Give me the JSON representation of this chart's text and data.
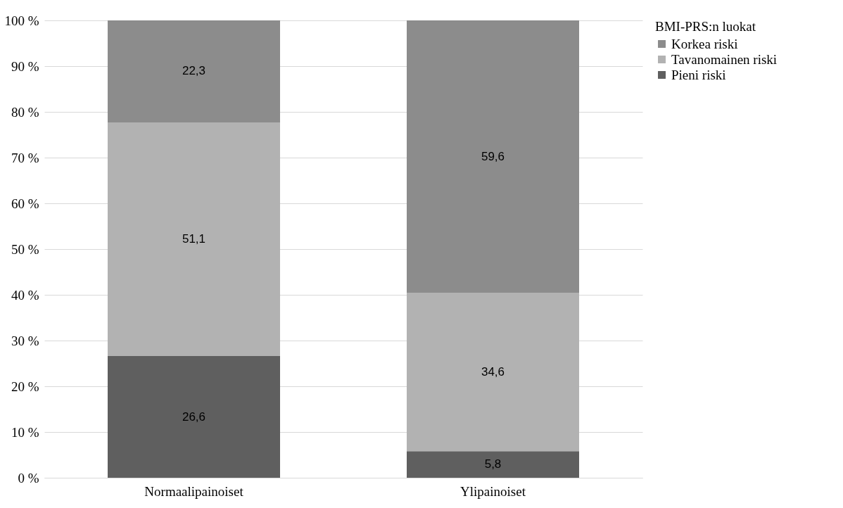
{
  "chart_data": {
    "type": "bar",
    "stacked": true,
    "categories": [
      "Normaalipainoiset",
      "Ylipainoiset"
    ],
    "series": [
      {
        "name": "Pieni riski",
        "color": "#5f5f5f",
        "values": [
          26.6,
          5.8
        ],
        "value_labels": [
          "26,6",
          "5,8"
        ]
      },
      {
        "name": "Tavanomainen riski",
        "color": "#b2b2b2",
        "values": [
          51.1,
          34.6
        ],
        "value_labels": [
          "51,1",
          "34,6"
        ]
      },
      {
        "name": "Korkea riski",
        "color": "#8c8c8c",
        "values": [
          22.3,
          59.6
        ],
        "value_labels": [
          "22,3",
          "59,6"
        ]
      }
    ],
    "legend_title": "BMI-PRS:n luokat",
    "legend": "right",
    "ylim": [
      0,
      100
    ],
    "yticks": [
      {
        "value": 0,
        "label": "0 %"
      },
      {
        "value": 10,
        "label": "10 %"
      },
      {
        "value": 20,
        "label": "20 %"
      },
      {
        "value": 30,
        "label": "30 %"
      },
      {
        "value": 40,
        "label": "40 %"
      },
      {
        "value": 50,
        "label": "50 %"
      },
      {
        "value": 60,
        "label": "60 %"
      },
      {
        "value": 70,
        "label": "70 %"
      },
      {
        "value": 80,
        "label": "80 %"
      },
      {
        "value": 90,
        "label": "90 %"
      },
      {
        "value": 100,
        "label": "100 %"
      }
    ],
    "grid": "y"
  }
}
